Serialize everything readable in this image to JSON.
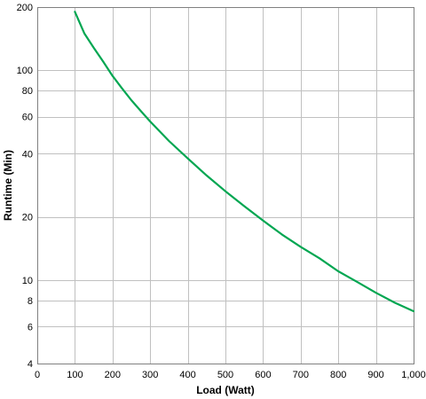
{
  "chart_data": {
    "type": "line",
    "title": "",
    "xlabel": "Load (Watt)",
    "ylabel": "Runtime (Min)",
    "xlim": [
      0,
      1000
    ],
    "ylim": [
      4,
      200
    ],
    "yscale": "log",
    "grid": true,
    "x_ticks": [
      "0",
      "100",
      "200",
      "300",
      "400",
      "500",
      "600",
      "700",
      "800",
      "900",
      "1,000"
    ],
    "x_tick_values": [
      0,
      100,
      200,
      300,
      400,
      500,
      600,
      700,
      800,
      900,
      1000
    ],
    "y_ticks": [
      "4",
      "6",
      "8",
      "10",
      "20",
      "40",
      "60",
      "80",
      "100",
      "200"
    ],
    "y_tick_values": [
      4,
      6,
      8,
      10,
      20,
      40,
      60,
      80,
      100,
      200
    ],
    "series": [
      {
        "color": "#00a651",
        "x": [
          100,
          125,
          150,
          175,
          200,
          225,
          250,
          275,
          300,
          350,
          400,
          450,
          500,
          550,
          600,
          650,
          700,
          750,
          800,
          850,
          900,
          950,
          1000
        ],
        "y": [
          190,
          150,
          128,
          110,
          94,
          82,
          72,
          64,
          57,
          46,
          38,
          31.5,
          26.5,
          22.5,
          19.2,
          16.5,
          14.4,
          12.7,
          11.0,
          9.8,
          8.7,
          7.8,
          7.1
        ]
      }
    ]
  }
}
